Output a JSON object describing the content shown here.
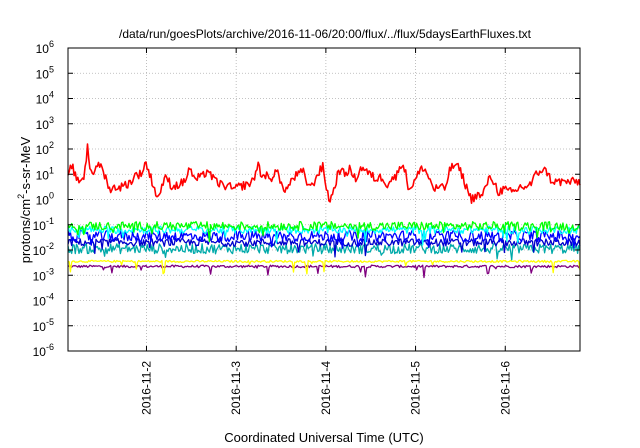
{
  "chart_data": {
    "type": "line",
    "title": "/data/run/goesPlots/archive/2016-11-06/20:00/flux/../flux/5daysEarthFluxes.txt",
    "xlabel": "Coordinated Universal Time (UTC)",
    "ylabel_parts": [
      "protons/cm",
      "2",
      "-s-sr-MeV"
    ],
    "x_range_days": [
      "2016-11-01 03:00",
      "2016-11-06 20:00"
    ],
    "x_ticks": [
      "2016-11-2",
      "2016-11-3",
      "2016-11-4",
      "2016-11-5",
      "2016-11-6"
    ],
    "y_scale": "log",
    "y_range": [
      1e-06,
      1000000.0
    ],
    "y_ticks": [
      {
        "base": "10",
        "exp": "-6"
      },
      {
        "base": "10",
        "exp": "-5"
      },
      {
        "base": "10",
        "exp": "-4"
      },
      {
        "base": "10",
        "exp": "-3"
      },
      {
        "base": "10",
        "exp": "-2"
      },
      {
        "base": "10",
        "exp": "-1"
      },
      {
        "base": "10",
        "exp": "0"
      },
      {
        "base": "10",
        "exp": "1"
      },
      {
        "base": "10",
        "exp": "2"
      },
      {
        "base": "10",
        "exp": "3"
      },
      {
        "base": "10",
        "exp": "4"
      },
      {
        "base": "10",
        "exp": "5"
      },
      {
        "base": "10",
        "exp": "6"
      }
    ],
    "grid": true,
    "series": [
      {
        "color": "#ff0000",
        "log10_center": 0.9,
        "noise": 0.35,
        "profile": [
          [
            0,
            0.8
          ],
          [
            0.04,
            1.4
          ],
          [
            0.1,
            0.7
          ],
          [
            0.18,
            0.9
          ],
          [
            0.2,
            1.5
          ],
          [
            0.22,
            2.25
          ],
          [
            0.24,
            1.3
          ],
          [
            0.3,
            1.0
          ],
          [
            0.34,
            1.5
          ],
          [
            0.38,
            1.2
          ],
          [
            0.44,
            0.7
          ],
          [
            0.48,
            0.3
          ],
          [
            0.52,
            0.5
          ],
          [
            0.6,
            0.5
          ],
          [
            0.7,
            0.7
          ],
          [
            0.76,
            1.0
          ],
          [
            0.82,
            1.0
          ],
          [
            0.86,
            1.5
          ],
          [
            0.9,
            1.1
          ],
          [
            0.96,
            0.5
          ],
          [
            1.0,
            0.0
          ],
          [
            1.04,
            0.5
          ],
          [
            1.1,
            0.9
          ],
          [
            1.16,
            0.5
          ],
          [
            1.24,
            0.6
          ],
          [
            1.3,
            0.7
          ],
          [
            1.36,
            1.3
          ],
          [
            1.4,
            0.8
          ],
          [
            1.5,
            0.9
          ],
          [
            1.56,
            1.2
          ],
          [
            1.62,
            0.8
          ],
          [
            1.7,
            0.6
          ],
          [
            1.8,
            0.5
          ],
          [
            1.86,
            0.4
          ],
          [
            1.9,
            0.5
          ],
          [
            2.0,
            0.6
          ],
          [
            2.06,
            0.7
          ],
          [
            2.12,
            1.4
          ],
          [
            2.16,
            0.9
          ],
          [
            2.2,
            1.0
          ],
          [
            2.26,
            0.7
          ],
          [
            2.32,
            1.3
          ],
          [
            2.38,
            0.5
          ],
          [
            2.44,
            0.4
          ],
          [
            2.5,
            0.8
          ],
          [
            2.56,
            1.0
          ],
          [
            2.62,
            1.1
          ],
          [
            2.66,
            0.7
          ],
          [
            2.72,
            0.5
          ],
          [
            2.78,
            1.0
          ],
          [
            2.84,
            1.3
          ],
          [
            2.88,
            0.5
          ],
          [
            2.92,
            -0.1
          ],
          [
            2.98,
            0.6
          ],
          [
            3.02,
            1.2
          ],
          [
            3.08,
            1.0
          ],
          [
            3.14,
            1.2
          ],
          [
            3.2,
            0.8
          ],
          [
            3.28,
            1.3
          ],
          [
            3.36,
            1.0
          ],
          [
            3.44,
            0.8
          ],
          [
            3.5,
            0.9
          ],
          [
            3.56,
            0.6
          ],
          [
            3.6,
            0.8
          ],
          [
            3.66,
            0.9
          ],
          [
            3.72,
            1.5
          ],
          [
            3.76,
            1.1
          ],
          [
            3.8,
            0.4
          ],
          [
            3.86,
            0.7
          ],
          [
            3.92,
            1.1
          ],
          [
            3.96,
            1.3
          ],
          [
            4.02,
            0.9
          ],
          [
            4.08,
            0.4
          ],
          [
            4.14,
            0.5
          ],
          [
            4.2,
            0.4
          ],
          [
            4.26,
            1.2
          ],
          [
            4.32,
            1.4
          ],
          [
            4.38,
            1.1
          ],
          [
            4.44,
            0.5
          ],
          [
            4.5,
            0.0
          ],
          [
            4.56,
            0.2
          ],
          [
            4.62,
            0.1
          ],
          [
            4.66,
            0.6
          ],
          [
            4.72,
            0.9
          ],
          [
            4.76,
            0.6
          ],
          [
            4.8,
            0.3
          ],
          [
            4.86,
            0.4
          ],
          [
            4.92,
            0.3
          ],
          [
            4.98,
            0.3
          ],
          [
            5.04,
            0.5
          ],
          [
            5.1,
            0.5
          ],
          [
            5.16,
            0.6
          ],
          [
            5.22,
            1.0
          ],
          [
            5.28,
            1.2
          ],
          [
            5.34,
            1.1
          ],
          [
            5.38,
            0.8
          ],
          [
            5.42,
            0.7
          ]
        ]
      },
      {
        "color": "#00ff00",
        "log10_center": -1.05,
        "noise": 0.35
      },
      {
        "color": "#00ffff",
        "log10_center": -1.2,
        "noise": 0.3
      },
      {
        "color": "#0000ff",
        "log10_center": -1.45,
        "noise": 0.45
      },
      {
        "color": "#0000cc",
        "log10_center": -1.7,
        "noise": 0.3
      },
      {
        "color": "#00aaaa",
        "log10_center": -1.95,
        "noise": 0.4
      },
      {
        "color": "#ffff00",
        "log10_center": -2.45,
        "noise": 0.08
      },
      {
        "color": "#7f007f",
        "log10_center": -2.65,
        "noise": 0.1
      }
    ]
  }
}
